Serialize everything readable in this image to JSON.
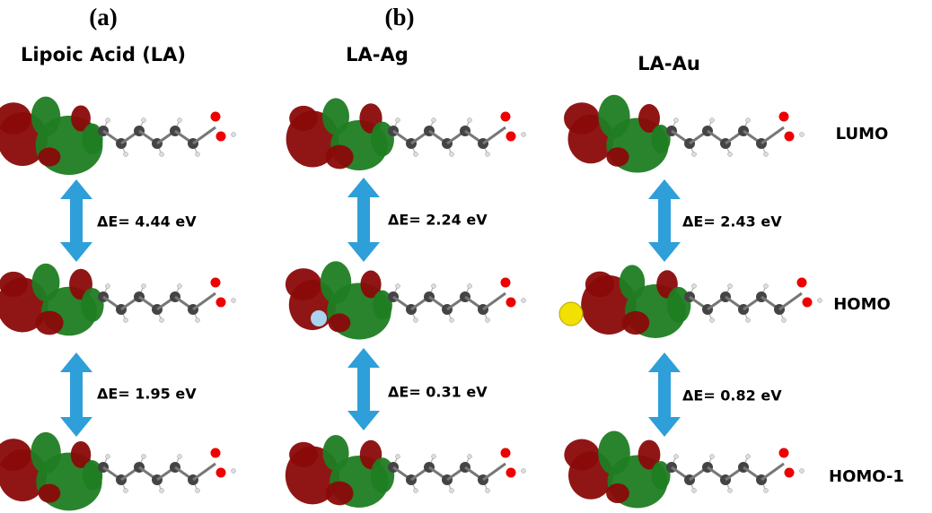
{
  "panel_labels": [
    "(a)",
    "(b)"
  ],
  "columns": [
    {
      "title": "Lipoic Acid (LA)",
      "gaps": [
        "ΔE= 4.44 eV",
        "ΔE= 1.95 eV"
      ]
    },
    {
      "title": "LA-Ag",
      "gaps": [
        "ΔE= 2.24 eV",
        "ΔE= 0.31 eV"
      ]
    },
    {
      "title": "LA-Au",
      "gaps": [
        "ΔE= 2.43 eV",
        "ΔE= 0.82 eV"
      ]
    }
  ],
  "rows": [
    "LUMO",
    "HOMO",
    "HOMO-1"
  ]
}
